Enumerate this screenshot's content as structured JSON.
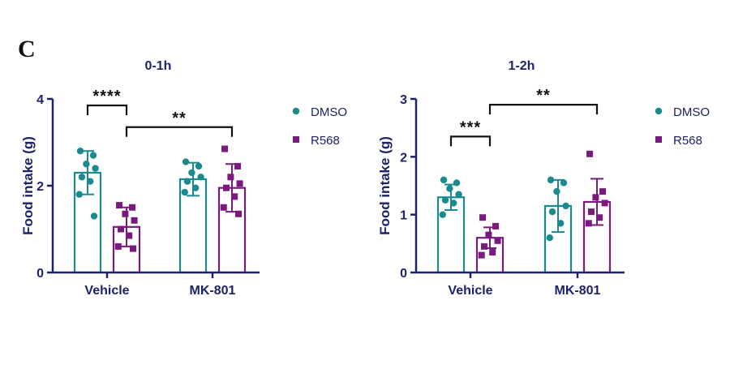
{
  "panel_label": "C",
  "colors": {
    "DMSO": "#1a8a8f",
    "R568": "#7a1a7f",
    "axis": "#1e2266",
    "text": "#1e2266",
    "bracket": "#111111"
  },
  "chart_data": [
    {
      "type": "bar",
      "title": "0-1h",
      "xlabel": "",
      "ylabel": "Food intake (g)",
      "ylim": [
        0,
        4
      ],
      "yticks": [
        "0",
        "2",
        "4"
      ],
      "categories": [
        "Vehicle",
        "MK-801"
      ],
      "legend": {
        "position": "right",
        "entries": [
          "DMSO",
          "R568"
        ]
      },
      "series": [
        {
          "name": "DMSO",
          "marker": "circle",
          "filled_bar": false,
          "values": [
            2.3,
            2.15
          ],
          "errors": [
            0.5,
            0.38
          ],
          "points": [
            [
              2.8,
              2.7,
              2.5,
              2.4,
              2.2,
              2.1,
              1.8,
              1.3
            ],
            [
              2.55,
              2.45,
              2.3,
              2.2,
              2.1,
              1.95,
              1.85
            ]
          ]
        },
        {
          "name": "R568",
          "marker": "square",
          "filled_bar": false,
          "values": [
            1.05,
            1.95
          ],
          "errors": [
            0.45,
            0.55
          ],
          "points": [
            [
              1.55,
              1.5,
              1.35,
              1.2,
              1.0,
              0.85,
              0.6,
              0.55
            ],
            [
              2.85,
              2.45,
              2.2,
              2.05,
              1.95,
              1.75,
              1.5,
              1.35
            ]
          ]
        }
      ],
      "significance": [
        {
          "label": "****",
          "from": "Vehicle-DMSO",
          "to": "Vehicle-R568",
          "y": 3.85
        },
        {
          "label": "**",
          "from": "Vehicle-R568",
          "to": "MK-801-R568",
          "y": 3.35
        }
      ]
    },
    {
      "type": "bar",
      "title": "1-2h",
      "xlabel": "",
      "ylabel": "Food intake (g)",
      "ylim": [
        0,
        3
      ],
      "yticks": [
        "0",
        "1",
        "2",
        "3"
      ],
      "categories": [
        "Vehicle",
        "MK-801"
      ],
      "legend": {
        "position": "right",
        "entries": [
          "DMSO",
          "R568"
        ]
      },
      "series": [
        {
          "name": "DMSO",
          "marker": "circle",
          "filled_bar": false,
          "values": [
            1.3,
            1.15
          ],
          "errors": [
            0.22,
            0.45
          ],
          "points": [
            [
              1.6,
              1.55,
              1.45,
              1.35,
              1.25,
              1.2,
              1.0
            ],
            [
              1.6,
              1.55,
              1.4,
              1.15,
              1.05,
              0.85,
              0.6
            ]
          ]
        },
        {
          "name": "R568",
          "marker": "square",
          "filled_bar": false,
          "values": [
            0.6,
            1.22
          ],
          "errors": [
            0.18,
            0.4
          ],
          "points": [
            [
              0.95,
              0.8,
              0.65,
              0.55,
              0.45,
              0.35,
              0.3
            ],
            [
              2.05,
              1.4,
              1.3,
              1.2,
              1.05,
              0.95,
              0.85
            ]
          ]
        }
      ],
      "significance": [
        {
          "label": "***",
          "from": "Vehicle-DMSO",
          "to": "Vehicle-R568",
          "y": 2.35
        },
        {
          "label": "**",
          "from": "Vehicle-R568",
          "to": "MK-801-R568",
          "y": 2.9
        }
      ]
    }
  ]
}
